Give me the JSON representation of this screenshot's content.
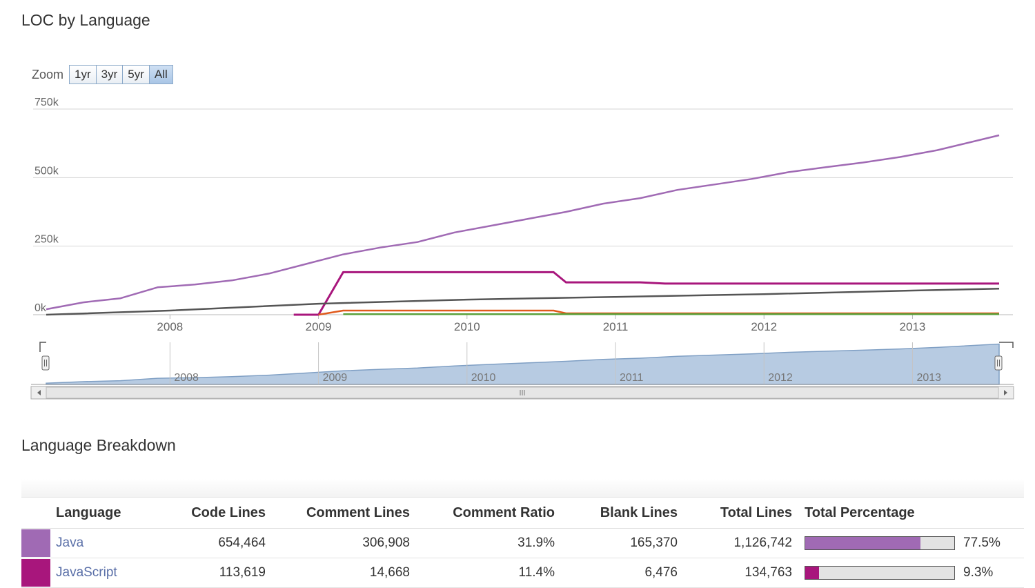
{
  "page": {
    "loc_title": "LOC by Language",
    "breakdown_title": "Language Breakdown"
  },
  "zoom": {
    "label": "Zoom",
    "buttons": [
      "1yr",
      "3yr",
      "5yr",
      "All"
    ],
    "active": "All"
  },
  "chart_data": {
    "type": "line",
    "title": "LOC by Language",
    "xlabel": "",
    "ylabel": "",
    "x_range": [
      "2007-03",
      "2013-08"
    ],
    "x_ticks": [
      "2008",
      "2009",
      "2010",
      "2011",
      "2012",
      "2013"
    ],
    "ylim": [
      0,
      750000
    ],
    "y_ticks": [
      0,
      250000,
      500000,
      750000
    ],
    "y_tick_labels": [
      "0k",
      "250k",
      "500k",
      "750k"
    ],
    "grid": true,
    "legend": "none",
    "series": [
      {
        "color": "#a06ab4",
        "points": [
          [
            "2007-03",
            20000
          ],
          [
            "2007-06",
            45000
          ],
          [
            "2007-09",
            60000
          ],
          [
            "2007-12",
            100000
          ],
          [
            "2008-03",
            110000
          ],
          [
            "2008-06",
            125000
          ],
          [
            "2008-09",
            150000
          ],
          [
            "2008-12",
            185000
          ],
          [
            "2009-03",
            220000
          ],
          [
            "2009-06",
            245000
          ],
          [
            "2009-09",
            265000
          ],
          [
            "2009-12",
            300000
          ],
          [
            "2010-03",
            325000
          ],
          [
            "2010-06",
            350000
          ],
          [
            "2010-09",
            375000
          ],
          [
            "2010-12",
            405000
          ],
          [
            "2011-03",
            425000
          ],
          [
            "2011-06",
            455000
          ],
          [
            "2011-09",
            475000
          ],
          [
            "2011-12",
            495000
          ],
          [
            "2012-03",
            520000
          ],
          [
            "2012-06",
            538000
          ],
          [
            "2012-09",
            555000
          ],
          [
            "2012-12",
            575000
          ],
          [
            "2013-03",
            600000
          ],
          [
            "2013-08",
            654464
          ]
        ]
      },
      {
        "color": "#a8167c",
        "points": [
          [
            "2008-11",
            0
          ],
          [
            "2009-01",
            0
          ],
          [
            "2009-03",
            155000
          ],
          [
            "2010-08",
            155000
          ],
          [
            "2010-09",
            118000
          ],
          [
            "2011-03",
            118000
          ],
          [
            "2011-05",
            113619
          ],
          [
            "2013-08",
            113619
          ]
        ]
      },
      {
        "color": "#555555",
        "points": [
          [
            "2007-03",
            0
          ],
          [
            "2008-01",
            15000
          ],
          [
            "2009-01",
            40000
          ],
          [
            "2010-01",
            55000
          ],
          [
            "2011-01",
            65000
          ],
          [
            "2012-01",
            75000
          ],
          [
            "2013-01",
            88000
          ],
          [
            "2013-08",
            95000
          ]
        ]
      },
      {
        "color": "#e05a1c",
        "points": [
          [
            "2009-01",
            0
          ],
          [
            "2009-03",
            15000
          ],
          [
            "2010-08",
            15000
          ],
          [
            "2010-09",
            5000
          ],
          [
            "2013-08",
            5000
          ]
        ]
      },
      {
        "color": "#5aa03a",
        "points": [
          [
            "2009-03",
            2000
          ],
          [
            "2013-08",
            2000
          ]
        ]
      }
    ],
    "navigator": {
      "x_ticks": [
        "2008",
        "2009",
        "2010",
        "2011",
        "2012",
        "2013"
      ]
    }
  },
  "table": {
    "headers": [
      "Language",
      "Code Lines",
      "Comment Lines",
      "Comment Ratio",
      "Blank Lines",
      "Total Lines",
      "Total Percentage"
    ],
    "rows": [
      {
        "color": "#a06ab4",
        "language": "Java",
        "code_lines": "654,464",
        "comment_lines": "306,908",
        "comment_ratio": "31.9%",
        "blank_lines": "165,370",
        "total_lines": "1,126,742",
        "percentage": "77.5%",
        "fraction": 0.775
      },
      {
        "color": "#a8167c",
        "language": "JavaScript",
        "code_lines": "113,619",
        "comment_lines": "14,668",
        "comment_ratio": "11.4%",
        "blank_lines": "6,476",
        "total_lines": "134,763",
        "percentage": "9.3%",
        "fraction": 0.093
      }
    ]
  }
}
